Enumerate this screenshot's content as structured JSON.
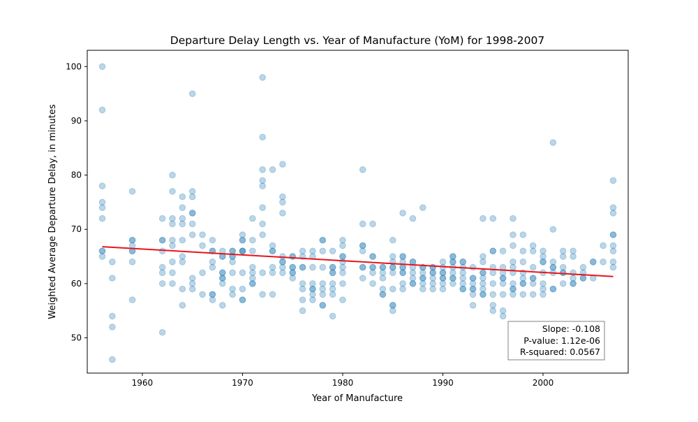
{
  "chart_data": {
    "type": "scatter",
    "title": "Departure Delay Length vs. Year of Manufacture (YoM) for 1998-2007",
    "xlabel": "Year of Manufacture",
    "ylabel": "Weighted Average Departure Delay, in minutes",
    "xlim": [
      1954.5,
      2008.5
    ],
    "ylim": [
      43.5,
      103
    ],
    "x_ticks": [
      1960,
      1970,
      1980,
      1990,
      2000
    ],
    "y_ticks": [
      50,
      60,
      70,
      80,
      90,
      100
    ],
    "grid": false,
    "point_color": "#1f77b4",
    "point_alpha": 0.3,
    "fit_line_color": "#e8141a",
    "fit_line": {
      "x": [
        1956,
        2007
      ],
      "y": [
        66.8,
        61.3
      ]
    },
    "stats": {
      "slope": "Slope: -0.108",
      "p_value": "P-value: 1.12e-06",
      "r_squared": "R-squared: 0.0567"
    },
    "points": [
      [
        1956,
        100
      ],
      [
        1956,
        92
      ],
      [
        1956,
        78
      ],
      [
        1956,
        75
      ],
      [
        1956,
        74
      ],
      [
        1956,
        72
      ],
      [
        1956,
        66
      ],
      [
        1956,
        66
      ],
      [
        1956,
        65
      ],
      [
        1957,
        64
      ],
      [
        1957,
        61
      ],
      [
        1957,
        54
      ],
      [
        1957,
        52
      ],
      [
        1957,
        46
      ],
      [
        1959,
        77
      ],
      [
        1959,
        68
      ],
      [
        1959,
        68
      ],
      [
        1959,
        67
      ],
      [
        1959,
        66
      ],
      [
        1959,
        66
      ],
      [
        1959,
        64
      ],
      [
        1959,
        57
      ],
      [
        1962,
        72
      ],
      [
        1962,
        68
      ],
      [
        1962,
        68
      ],
      [
        1962,
        66
      ],
      [
        1962,
        63
      ],
      [
        1962,
        62
      ],
      [
        1962,
        60
      ],
      [
        1962,
        51
      ],
      [
        1963,
        80
      ],
      [
        1963,
        77
      ],
      [
        1963,
        72
      ],
      [
        1963,
        71
      ],
      [
        1963,
        68
      ],
      [
        1963,
        67
      ],
      [
        1963,
        64
      ],
      [
        1963,
        62
      ],
      [
        1963,
        60
      ],
      [
        1964,
        76
      ],
      [
        1964,
        74
      ],
      [
        1964,
        72
      ],
      [
        1964,
        71
      ],
      [
        1964,
        68
      ],
      [
        1964,
        65
      ],
      [
        1964,
        64
      ],
      [
        1964,
        59
      ],
      [
        1964,
        56
      ],
      [
        1965,
        95
      ],
      [
        1965,
        77
      ],
      [
        1965,
        76
      ],
      [
        1965,
        73
      ],
      [
        1965,
        73
      ],
      [
        1965,
        71
      ],
      [
        1965,
        69
      ],
      [
        1965,
        61
      ],
      [
        1965,
        60
      ],
      [
        1965,
        59
      ],
      [
        1966,
        69
      ],
      [
        1966,
        67
      ],
      [
        1966,
        62
      ],
      [
        1966,
        58
      ],
      [
        1967,
        68
      ],
      [
        1967,
        66
      ],
      [
        1967,
        66
      ],
      [
        1967,
        64
      ],
      [
        1967,
        63
      ],
      [
        1967,
        58
      ],
      [
        1967,
        58
      ],
      [
        1967,
        57
      ],
      [
        1968,
        66
      ],
      [
        1968,
        65
      ],
      [
        1968,
        65
      ],
      [
        1968,
        62
      ],
      [
        1968,
        62
      ],
      [
        1968,
        61
      ],
      [
        1968,
        61
      ],
      [
        1968,
        60
      ],
      [
        1968,
        56
      ],
      [
        1969,
        66
      ],
      [
        1969,
        66
      ],
      [
        1969,
        65
      ],
      [
        1969,
        65
      ],
      [
        1969,
        64
      ],
      [
        1969,
        62
      ],
      [
        1969,
        59
      ],
      [
        1969,
        58
      ],
      [
        1970,
        69
      ],
      [
        1970,
        68
      ],
      [
        1970,
        68
      ],
      [
        1970,
        66
      ],
      [
        1970,
        66
      ],
      [
        1970,
        66
      ],
      [
        1970,
        62
      ],
      [
        1970,
        59
      ],
      [
        1970,
        57
      ],
      [
        1970,
        57
      ],
      [
        1971,
        72
      ],
      [
        1971,
        68
      ],
      [
        1971,
        66
      ],
      [
        1971,
        63
      ],
      [
        1971,
        62
      ],
      [
        1971,
        61
      ],
      [
        1971,
        60
      ],
      [
        1971,
        60
      ],
      [
        1972,
        98
      ],
      [
        1972,
        87
      ],
      [
        1972,
        81
      ],
      [
        1972,
        79
      ],
      [
        1972,
        78
      ],
      [
        1972,
        74
      ],
      [
        1972,
        71
      ],
      [
        1972,
        69
      ],
      [
        1972,
        62
      ],
      [
        1972,
        58
      ],
      [
        1973,
        81
      ],
      [
        1973,
        67
      ],
      [
        1973,
        66
      ],
      [
        1973,
        66
      ],
      [
        1973,
        63
      ],
      [
        1973,
        62
      ],
      [
        1973,
        58
      ],
      [
        1974,
        82
      ],
      [
        1974,
        76
      ],
      [
        1974,
        75
      ],
      [
        1974,
        73
      ],
      [
        1974,
        65
      ],
      [
        1974,
        64
      ],
      [
        1974,
        64
      ],
      [
        1974,
        63
      ],
      [
        1974,
        62
      ],
      [
        1975,
        65
      ],
      [
        1975,
        65
      ],
      [
        1975,
        63
      ],
      [
        1975,
        63
      ],
      [
        1975,
        62
      ],
      [
        1975,
        62
      ],
      [
        1975,
        61
      ],
      [
        1976,
        66
      ],
      [
        1976,
        65
      ],
      [
        1976,
        63
      ],
      [
        1976,
        63
      ],
      [
        1976,
        60
      ],
      [
        1976,
        59
      ],
      [
        1976,
        57
      ],
      [
        1976,
        55
      ],
      [
        1977,
        66
      ],
      [
        1977,
        65
      ],
      [
        1977,
        63
      ],
      [
        1977,
        60
      ],
      [
        1977,
        59
      ],
      [
        1977,
        59
      ],
      [
        1977,
        58
      ],
      [
        1977,
        57
      ],
      [
        1978,
        68
      ],
      [
        1978,
        68
      ],
      [
        1978,
        66
      ],
      [
        1978,
        63
      ],
      [
        1978,
        60
      ],
      [
        1978,
        59
      ],
      [
        1978,
        58
      ],
      [
        1978,
        56
      ],
      [
        1978,
        56
      ],
      [
        1979,
        66
      ],
      [
        1979,
        63
      ],
      [
        1979,
        63
      ],
      [
        1979,
        62
      ],
      [
        1979,
        62
      ],
      [
        1979,
        60
      ],
      [
        1979,
        59
      ],
      [
        1979,
        58
      ],
      [
        1979,
        54
      ],
      [
        1980,
        68
      ],
      [
        1980,
        67
      ],
      [
        1980,
        65
      ],
      [
        1980,
        65
      ],
      [
        1980,
        64
      ],
      [
        1980,
        63
      ],
      [
        1980,
        62
      ],
      [
        1980,
        60
      ],
      [
        1980,
        57
      ],
      [
        1982,
        81
      ],
      [
        1982,
        71
      ],
      [
        1982,
        67
      ],
      [
        1982,
        67
      ],
      [
        1982,
        66
      ],
      [
        1982,
        63
      ],
      [
        1982,
        63
      ],
      [
        1982,
        61
      ],
      [
        1983,
        71
      ],
      [
        1983,
        65
      ],
      [
        1983,
        65
      ],
      [
        1983,
        63
      ],
      [
        1983,
        63
      ],
      [
        1983,
        62
      ],
      [
        1983,
        60
      ],
      [
        1984,
        63
      ],
      [
        1984,
        63
      ],
      [
        1984,
        62
      ],
      [
        1984,
        61
      ],
      [
        1984,
        59
      ],
      [
        1984,
        58
      ],
      [
        1984,
        58
      ],
      [
        1985,
        68
      ],
      [
        1985,
        65
      ],
      [
        1985,
        64
      ],
      [
        1985,
        63
      ],
      [
        1985,
        63
      ],
      [
        1985,
        62
      ],
      [
        1985,
        59
      ],
      [
        1985,
        56
      ],
      [
        1985,
        56
      ],
      [
        1985,
        55
      ],
      [
        1986,
        73
      ],
      [
        1986,
        65
      ],
      [
        1986,
        65
      ],
      [
        1986,
        64
      ],
      [
        1986,
        63
      ],
      [
        1986,
        63
      ],
      [
        1986,
        62
      ],
      [
        1986,
        62
      ],
      [
        1986,
        60
      ],
      [
        1986,
        59
      ],
      [
        1987,
        72
      ],
      [
        1987,
        64
      ],
      [
        1987,
        64
      ],
      [
        1987,
        63
      ],
      [
        1987,
        62
      ],
      [
        1987,
        61
      ],
      [
        1987,
        60
      ],
      [
        1987,
        60
      ],
      [
        1988,
        74
      ],
      [
        1988,
        63
      ],
      [
        1988,
        63
      ],
      [
        1988,
        62
      ],
      [
        1988,
        61
      ],
      [
        1988,
        61
      ],
      [
        1988,
        60
      ],
      [
        1988,
        59
      ],
      [
        1989,
        63
      ],
      [
        1989,
        63
      ],
      [
        1989,
        62
      ],
      [
        1989,
        62
      ],
      [
        1989,
        61
      ],
      [
        1989,
        60
      ],
      [
        1989,
        59
      ],
      [
        1990,
        64
      ],
      [
        1990,
        63
      ],
      [
        1990,
        62
      ],
      [
        1990,
        62
      ],
      [
        1990,
        61
      ],
      [
        1990,
        61
      ],
      [
        1990,
        60
      ],
      [
        1990,
        59
      ],
      [
        1991,
        65
      ],
      [
        1991,
        65
      ],
      [
        1991,
        64
      ],
      [
        1991,
        64
      ],
      [
        1991,
        63
      ],
      [
        1991,
        62
      ],
      [
        1991,
        61
      ],
      [
        1991,
        61
      ],
      [
        1991,
        60
      ],
      [
        1992,
        64
      ],
      [
        1992,
        64
      ],
      [
        1992,
        63
      ],
      [
        1992,
        62
      ],
      [
        1992,
        61
      ],
      [
        1992,
        60
      ],
      [
        1992,
        59
      ],
      [
        1992,
        59
      ],
      [
        1993,
        63
      ],
      [
        1993,
        61
      ],
      [
        1993,
        61
      ],
      [
        1993,
        60
      ],
      [
        1993,
        59
      ],
      [
        1993,
        59
      ],
      [
        1993,
        58
      ],
      [
        1993,
        56
      ],
      [
        1994,
        72
      ],
      [
        1994,
        65
      ],
      [
        1994,
        64
      ],
      [
        1994,
        62
      ],
      [
        1994,
        62
      ],
      [
        1994,
        61
      ],
      [
        1994,
        60
      ],
      [
        1994,
        59
      ],
      [
        1994,
        58
      ],
      [
        1994,
        58
      ],
      [
        1995,
        72
      ],
      [
        1995,
        66
      ],
      [
        1995,
        66
      ],
      [
        1995,
        63
      ],
      [
        1995,
        62
      ],
      [
        1995,
        60
      ],
      [
        1995,
        58
      ],
      [
        1995,
        56
      ],
      [
        1995,
        55
      ],
      [
        1996,
        66
      ],
      [
        1996,
        63
      ],
      [
        1996,
        62
      ],
      [
        1996,
        61
      ],
      [
        1996,
        61
      ],
      [
        1996,
        60
      ],
      [
        1996,
        58
      ],
      [
        1996,
        55
      ],
      [
        1996,
        54
      ],
      [
        1997,
        72
      ],
      [
        1997,
        69
      ],
      [
        1997,
        67
      ],
      [
        1997,
        64
      ],
      [
        1997,
        63
      ],
      [
        1997,
        62
      ],
      [
        1997,
        60
      ],
      [
        1997,
        59
      ],
      [
        1997,
        59
      ],
      [
        1997,
        58
      ],
      [
        1998,
        69
      ],
      [
        1998,
        66
      ],
      [
        1998,
        64
      ],
      [
        1998,
        62
      ],
      [
        1998,
        61
      ],
      [
        1998,
        60
      ],
      [
        1998,
        60
      ],
      [
        1998,
        58
      ],
      [
        1999,
        67
      ],
      [
        1999,
        66
      ],
      [
        1999,
        63
      ],
      [
        1999,
        61
      ],
      [
        1999,
        61
      ],
      [
        1999,
        60
      ],
      [
        1999,
        58
      ],
      [
        2000,
        66
      ],
      [
        2000,
        65
      ],
      [
        2000,
        64
      ],
      [
        2000,
        64
      ],
      [
        2000,
        62
      ],
      [
        2000,
        60
      ],
      [
        2000,
        59
      ],
      [
        2000,
        58
      ],
      [
        2001,
        86
      ],
      [
        2001,
        70
      ],
      [
        2001,
        64
      ],
      [
        2001,
        63
      ],
      [
        2001,
        63
      ],
      [
        2001,
        62
      ],
      [
        2001,
        59
      ],
      [
        2001,
        59
      ],
      [
        2002,
        66
      ],
      [
        2002,
        65
      ],
      [
        2002,
        63
      ],
      [
        2002,
        62
      ],
      [
        2002,
        62
      ],
      [
        2002,
        60
      ],
      [
        2003,
        66
      ],
      [
        2003,
        65
      ],
      [
        2003,
        62
      ],
      [
        2003,
        61
      ],
      [
        2003,
        60
      ],
      [
        2003,
        60
      ],
      [
        2004,
        63
      ],
      [
        2004,
        62
      ],
      [
        2004,
        61
      ],
      [
        2004,
        61
      ],
      [
        2005,
        64
      ],
      [
        2005,
        64
      ],
      [
        2005,
        61
      ],
      [
        2006,
        67
      ],
      [
        2006,
        64
      ],
      [
        2007,
        79
      ],
      [
        2007,
        74
      ],
      [
        2007,
        73
      ],
      [
        2007,
        69
      ],
      [
        2007,
        69
      ],
      [
        2007,
        67
      ],
      [
        2007,
        66
      ],
      [
        2007,
        64
      ],
      [
        2007,
        63
      ]
    ]
  }
}
